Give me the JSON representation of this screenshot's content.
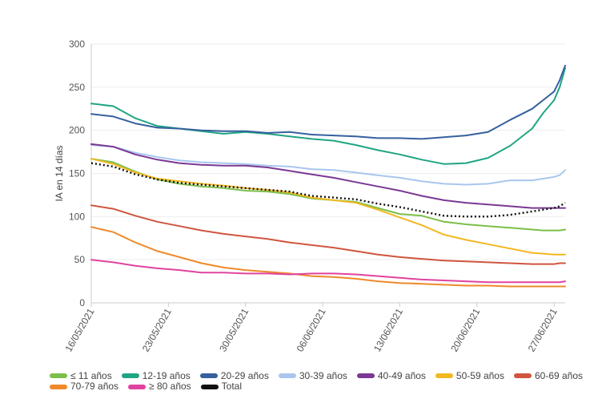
{
  "chart_data": {
    "type": "line",
    "title": "",
    "xlabel": "",
    "ylabel": "IA en 14 días",
    "ylim": [
      0,
      300
    ],
    "yticks": [
      0,
      50,
      100,
      150,
      200,
      250,
      300
    ],
    "x_start": "16/05/2021",
    "x_end": "28/06/2021",
    "xtick_labels": [
      "16/05/2021",
      "23/05/2021",
      "30/05/2021",
      "06/06/2021",
      "13/06/2021",
      "20/06/2021",
      "27/06/2021"
    ],
    "xtick_days": [
      0,
      7,
      14,
      21,
      28,
      35,
      42
    ],
    "x_days": [
      0,
      2,
      4,
      6,
      8,
      10,
      12,
      14,
      16,
      18,
      20,
      22,
      24,
      26,
      28,
      30,
      32,
      34,
      36,
      38,
      40,
      41,
      42,
      42.5,
      43
    ],
    "series": [
      {
        "name": "≤ 11 años",
        "color": "#7bbf4a",
        "dash": false,
        "values": [
          167,
          163,
          152,
          143,
          138,
          135,
          133,
          130,
          129,
          126,
          121,
          119,
          117,
          110,
          103,
          101,
          94,
          91,
          89,
          87,
          85,
          84,
          84,
          84,
          85
        ]
      },
      {
        "name": "12-19 años",
        "color": "#20a583",
        "dash": false,
        "values": [
          231,
          228,
          214,
          205,
          202,
          199,
          196,
          198,
          196,
          193,
          190,
          188,
          183,
          177,
          172,
          166,
          161,
          162,
          168,
          182,
          202,
          220,
          235,
          250,
          272
        ]
      },
      {
        "name": "20-29 años",
        "color": "#36609e",
        "dash": false,
        "values": [
          219,
          216,
          208,
          203,
          202,
          200,
          199,
          199,
          197,
          198,
          195,
          194,
          193,
          191,
          191,
          190,
          192,
          194,
          198,
          212,
          225,
          235,
          245,
          258,
          275
        ]
      },
      {
        "name": "30-39 años",
        "color": "#a9c6ee",
        "dash": false,
        "values": [
          183,
          181,
          174,
          169,
          165,
          163,
          162,
          161,
          159,
          158,
          155,
          154,
          151,
          148,
          145,
          141,
          138,
          137,
          138,
          142,
          142,
          144,
          146,
          148,
          154
        ]
      },
      {
        "name": "40-49 años",
        "color": "#7b3894",
        "dash": false,
        "values": [
          184,
          181,
          172,
          166,
          162,
          160,
          159,
          159,
          157,
          153,
          149,
          145,
          140,
          135,
          130,
          124,
          119,
          116,
          114,
          112,
          110,
          110,
          110,
          110,
          110
        ]
      },
      {
        "name": "50-59 años",
        "color": "#f2b821",
        "dash": false,
        "values": [
          167,
          161,
          151,
          144,
          141,
          138,
          136,
          133,
          131,
          128,
          122,
          119,
          116,
          108,
          99,
          90,
          79,
          73,
          68,
          63,
          58,
          57,
          56,
          56,
          56
        ]
      },
      {
        "name": "60-69 años",
        "color": "#d0553f",
        "dash": false,
        "values": [
          113,
          109,
          101,
          94,
          89,
          84,
          80,
          77,
          74,
          70,
          67,
          64,
          60,
          56,
          53,
          51,
          49,
          48,
          47,
          46,
          45,
          45,
          45,
          46,
          46
        ]
      },
      {
        "name": "70-79 años",
        "color": "#ee8a2a",
        "dash": false,
        "values": [
          88,
          82,
          70,
          60,
          53,
          46,
          41,
          38,
          36,
          34,
          31,
          30,
          28,
          25,
          23,
          22,
          21,
          20,
          20,
          19,
          19,
          19,
          19,
          19,
          19
        ]
      },
      {
        "name": "≥ 80 años",
        "color": "#e0439f",
        "dash": false,
        "values": [
          50,
          47,
          43,
          40,
          38,
          35,
          35,
          34,
          34,
          33,
          34,
          34,
          33,
          31,
          29,
          27,
          26,
          25,
          24,
          24,
          24,
          24,
          24,
          24,
          25
        ]
      },
      {
        "name": "Total",
        "color": "#111111",
        "dash": true,
        "values": [
          162,
          158,
          149,
          143,
          139,
          137,
          135,
          133,
          131,
          129,
          124,
          122,
          120,
          115,
          111,
          106,
          101,
          100,
          100,
          102,
          106,
          108,
          110,
          112,
          116
        ]
      }
    ]
  }
}
